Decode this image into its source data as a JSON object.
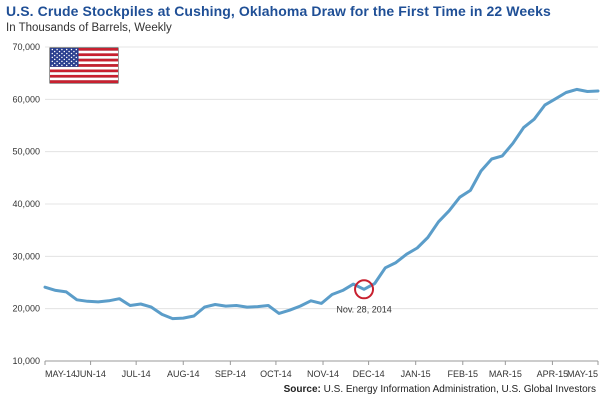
{
  "title": "U.S. Crude Stockpiles at Cushing, Oklahoma Draw for the First Time in 22 Weeks",
  "subtitle": "In Thousands of Barrels, Weekly",
  "source_label": "Source:",
  "source_text": "U.S. Energy Information Administration, U.S. Global Investors",
  "flag_icon": "us-flag-icon",
  "colors": {
    "line": "#5b9dc9",
    "marker": "#c8202f",
    "title": "#1f4f96",
    "grid": "#dddddd"
  },
  "chart_data": {
    "type": "line",
    "title": "U.S. Crude Stockpiles at Cushing, Oklahoma Draw for the First Time in 22 Weeks",
    "subtitle": "In Thousands of Barrels, Weekly",
    "xlabel": "",
    "ylabel": "",
    "ylim": [
      10000,
      70000
    ],
    "yticks": [
      10000,
      20000,
      30000,
      40000,
      50000,
      60000,
      70000
    ],
    "ytick_labels": [
      "10,000",
      "20,000",
      "30,000",
      "40,000",
      "50,000",
      "60,000",
      "70,000"
    ],
    "xlim": [
      "2014-05-02",
      "2015-05-01"
    ],
    "xticks": [
      "2014-05-02",
      "2014-06-01",
      "2014-07-01",
      "2014-08-01",
      "2014-09-01",
      "2014-10-01",
      "2014-11-01",
      "2014-12-01",
      "2015-01-01",
      "2015-02-01",
      "2015-03-01",
      "2015-04-01",
      "2015-05-01"
    ],
    "xtick_labels": [
      "MAY-14",
      "JUN-14",
      "JUL-14",
      "AUG-14",
      "SEP-14",
      "OCT-14",
      "NOV-14",
      "DEC-14",
      "JAN-15",
      "FEB-15",
      "MAR-15",
      "APR-15",
      "MAY-15"
    ],
    "grid": "horizontal",
    "series": [
      {
        "x": [
          "2014-05-02",
          "2014-05-09",
          "2014-05-16",
          "2014-05-23",
          "2014-05-30",
          "2014-06-06",
          "2014-06-13",
          "2014-06-20",
          "2014-06-27",
          "2014-07-04",
          "2014-07-11",
          "2014-07-18",
          "2014-07-25",
          "2014-08-01",
          "2014-08-08",
          "2014-08-15",
          "2014-08-22",
          "2014-08-29",
          "2014-09-05",
          "2014-09-12",
          "2014-09-19",
          "2014-09-26",
          "2014-10-03",
          "2014-10-10",
          "2014-10-17",
          "2014-10-24",
          "2014-10-31",
          "2014-11-07",
          "2014-11-14",
          "2014-11-21",
          "2014-11-28",
          "2014-12-05",
          "2014-12-12",
          "2014-12-19",
          "2014-12-26",
          "2015-01-02",
          "2015-01-09",
          "2015-01-16",
          "2015-01-23",
          "2015-01-30",
          "2015-02-06",
          "2015-02-13",
          "2015-02-20",
          "2015-02-27",
          "2015-03-06",
          "2015-03-13",
          "2015-03-20",
          "2015-03-27",
          "2015-04-03",
          "2015-04-10",
          "2015-04-17",
          "2015-04-24",
          "2015-05-01"
        ],
        "values": [
          24100,
          23500,
          23200,
          21700,
          21400,
          21300,
          21500,
          21900,
          20600,
          20900,
          20300,
          18900,
          18100,
          18200,
          18600,
          20300,
          20800,
          20500,
          20600,
          20300,
          20400,
          20600,
          19100,
          19700,
          20500,
          21500,
          21000,
          22700,
          23500,
          24700,
          23700,
          24800,
          27800,
          28800,
          30400,
          31600,
          33600,
          36600,
          38700,
          41300,
          42600,
          46300,
          48600,
          49200,
          51600,
          54600,
          56200,
          58900,
          60100,
          61300,
          61900,
          61500,
          61600
        ]
      }
    ],
    "annotations": [
      {
        "x": "2014-11-28",
        "y": 23700,
        "text": "Nov. 28, 2014",
        "marker": "circle"
      }
    ]
  }
}
